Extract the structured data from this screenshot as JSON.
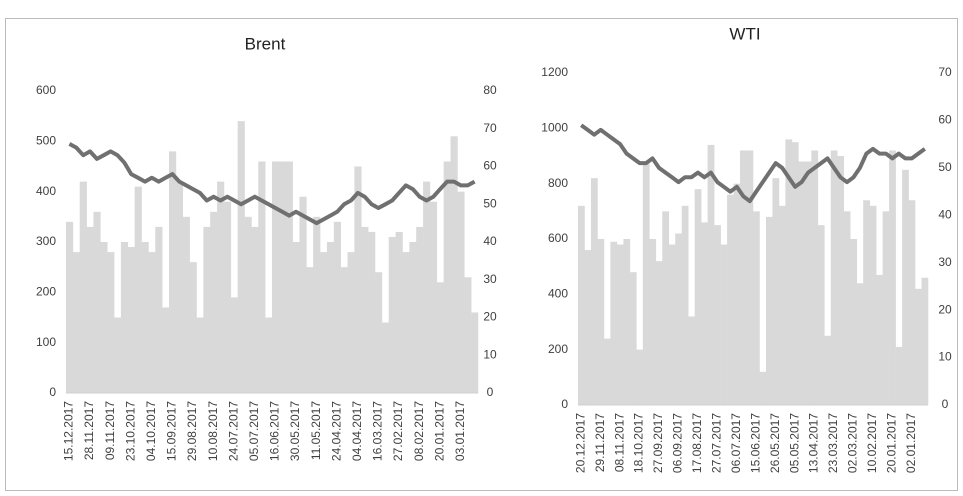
{
  "chart_data": [
    {
      "type": "combo",
      "title": "Brent",
      "categories": [
        "15.12.2017",
        null,
        null,
        "28.11.2017",
        null,
        null,
        "09.11.2017",
        null,
        null,
        "23.10.2017",
        null,
        null,
        "04.10.2017",
        null,
        null,
        "15.09.2017",
        null,
        null,
        "29.08.2017",
        null,
        null,
        "10.08.2017",
        null,
        null,
        "24.07.2017",
        null,
        null,
        "05.07.2017",
        null,
        null,
        "16.06.2017",
        null,
        null,
        "30.05.2017",
        null,
        null,
        "11.05.2017",
        null,
        null,
        "24.04.2017",
        null,
        null,
        "04.04.2017",
        null,
        null,
        "16.03.2017",
        null,
        null,
        "27.02.2017",
        null,
        null,
        "08.02.2017",
        null,
        null,
        "20.01.2017",
        null,
        null,
        "03.01.2017",
        null,
        null
      ],
      "series": [
        {
          "type": "bar",
          "color": "#d9d9d9",
          "values": [
            340,
            280,
            420,
            330,
            360,
            300,
            280,
            150,
            300,
            290,
            410,
            300,
            280,
            330,
            170,
            480,
            420,
            350,
            260,
            150,
            330,
            360,
            420,
            380,
            190,
            540,
            350,
            330,
            460,
            150,
            460,
            460,
            460,
            300,
            390,
            250,
            350,
            280,
            300,
            340,
            250,
            280,
            450,
            330,
            320,
            240,
            140,
            310,
            320,
            280,
            300,
            330,
            420,
            380,
            220,
            460,
            510,
            400,
            230,
            160
          ]
        },
        {
          "type": "line",
          "axis": "y2",
          "color": "#707070",
          "values": [
            66,
            65,
            63,
            64,
            62,
            63,
            64,
            63,
            61,
            58,
            57,
            56,
            57,
            56,
            57,
            58,
            56,
            55,
            54,
            53,
            51,
            52,
            51,
            52,
            51,
            50,
            51,
            52,
            51,
            50,
            49,
            48,
            47,
            48,
            47,
            46,
            45,
            46,
            47,
            48,
            50,
            51,
            53,
            52,
            50,
            49,
            50,
            51,
            53,
            55,
            54,
            52,
            51,
            52,
            54,
            56,
            56,
            55,
            55,
            56
          ]
        }
      ],
      "ylim": [
        0,
        600
      ],
      "yticks": [
        0,
        100,
        200,
        300,
        400,
        500,
        600
      ],
      "y2lim": [
        0,
        80
      ],
      "y2ticks": [
        0,
        10,
        20,
        30,
        40,
        50,
        60,
        70,
        80
      ]
    },
    {
      "type": "combo",
      "title": "WTI",
      "categories": [
        "20.12.2017",
        null,
        null,
        "29.11.2017",
        null,
        null,
        "08.11.2017",
        null,
        null,
        "18.10.2017",
        null,
        null,
        "27.09.2017",
        null,
        null,
        "06.09.2017",
        null,
        null,
        "17.08.2017",
        null,
        null,
        "27.07.2017",
        null,
        null,
        "06.07.2017",
        null,
        null,
        "15.06.2017",
        null,
        null,
        "26.05.2017",
        null,
        null,
        "05.05.2017",
        null,
        null,
        "13.04.2017",
        null,
        null,
        "23.03.2017",
        null,
        null,
        "02.03.2017",
        null,
        null,
        "10.02.2017",
        null,
        null,
        "20.01.2017",
        null,
        null,
        "02.01.2017",
        null,
        null
      ],
      "series": [
        {
          "type": "bar",
          "color": "#d9d9d9",
          "values": [
            720,
            560,
            820,
            600,
            240,
            590,
            580,
            600,
            480,
            200,
            880,
            600,
            520,
            700,
            580,
            620,
            720,
            320,
            780,
            660,
            940,
            650,
            580,
            760,
            800,
            920,
            920,
            700,
            120,
            680,
            820,
            720,
            960,
            950,
            880,
            880,
            920,
            650,
            250,
            920,
            900,
            700,
            600,
            440,
            740,
            720,
            470,
            700,
            920,
            210,
            850,
            740,
            420,
            460
          ]
        },
        {
          "type": "line",
          "axis": "y2",
          "color": "#707070",
          "values": [
            59,
            58,
            57,
            58,
            57,
            56,
            55,
            53,
            52,
            51,
            51,
            52,
            50,
            49,
            48,
            47,
            48,
            48,
            49,
            48,
            49,
            47,
            46,
            45,
            46,
            44,
            43,
            45,
            47,
            49,
            51,
            50,
            48,
            46,
            47,
            49,
            50,
            51,
            52,
            50,
            48,
            47,
            48,
            50,
            53,
            54,
            53,
            53,
            52,
            53,
            52,
            52,
            53,
            54
          ]
        }
      ],
      "ylim": [
        0,
        1200
      ],
      "yticks": [
        0,
        200,
        400,
        600,
        800,
        1000,
        1200
      ],
      "y2lim": [
        0,
        70
      ],
      "y2ticks": [
        0,
        10,
        20,
        30,
        40,
        50,
        60,
        70
      ]
    }
  ]
}
